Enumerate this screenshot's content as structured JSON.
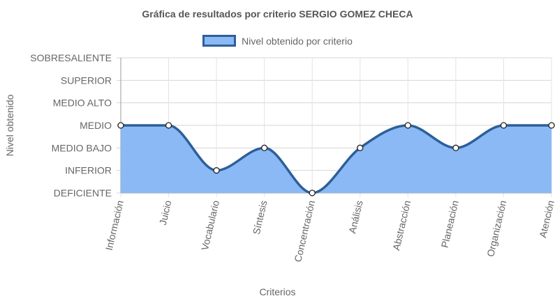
{
  "chart_data": {
    "type": "area",
    "title": "Gráfica de resultados por criterio SERGIO GOMEZ CHECA",
    "xlabel": "Criterios",
    "ylabel": "Nivel obtenido",
    "levels": [
      "DEFICIENTE",
      "INFERIOR",
      "MEDIO BAJO",
      "MEDIO",
      "MEDIO ALTO",
      "SUPERIOR",
      "SOBRESALIENTE"
    ],
    "categories": [
      "Información",
      "Juicio",
      "Vocabulario",
      "Síntesis",
      "Concentración",
      "Análisis",
      "Abstracción",
      "Planeación",
      "Organización",
      "Atención"
    ],
    "series": [
      {
        "name": "Nivel obtenido por criterio",
        "values": [
          "MEDIO",
          "MEDIO",
          "INFERIOR",
          "MEDIO BAJO",
          "DEFICIENTE",
          "MEDIO BAJO",
          "MEDIO",
          "MEDIO BAJO",
          "MEDIO",
          "MEDIO"
        ]
      }
    ],
    "legend_position": "top",
    "grid": true,
    "colors": {
      "fill": "#8ab9f5",
      "line": "#2d5f98"
    }
  }
}
